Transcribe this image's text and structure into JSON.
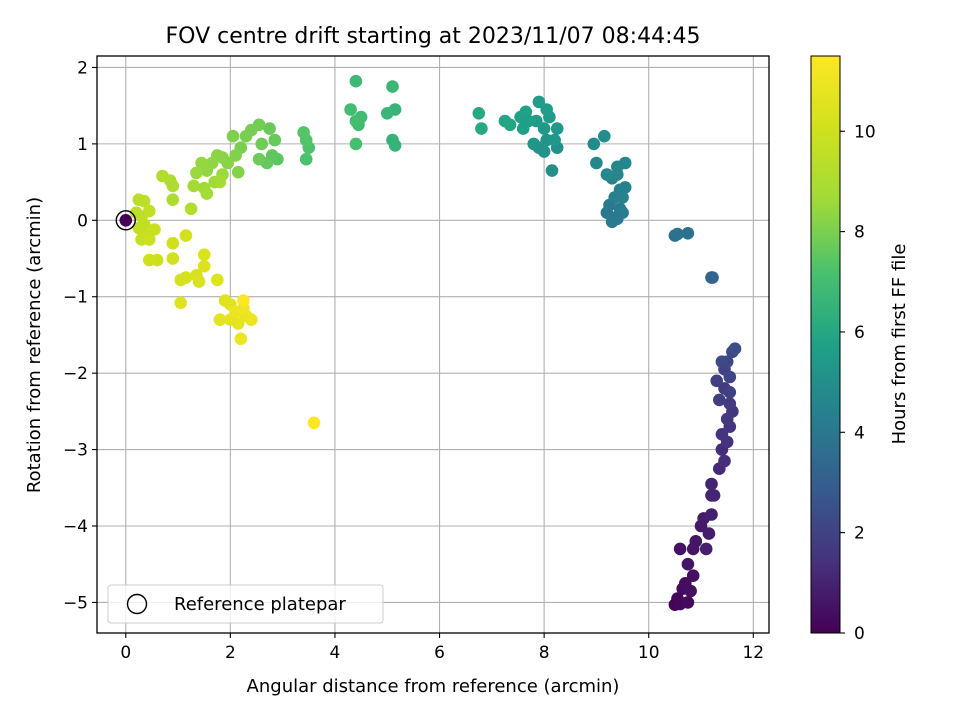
{
  "chart_data": {
    "type": "scatter",
    "title": "FOV centre drift starting at 2023/11/07 08:44:45",
    "xlabel": "Angular distance from reference (arcmin)",
    "ylabel": "Rotation from reference (arcmin)",
    "xlim": [
      -0.55,
      12.3
    ],
    "ylim": [
      -5.4,
      2.15
    ],
    "xticks": [
      0,
      2,
      4,
      6,
      8,
      10,
      12
    ],
    "yticks": [
      -5,
      -4,
      -3,
      -2,
      -1,
      0,
      1,
      2
    ],
    "grid": true,
    "legend": {
      "placement": "lower-left",
      "entries": [
        "Reference platepar"
      ]
    },
    "reference_point": {
      "x": 0,
      "y": 0
    },
    "colorbar": {
      "label": "Hours from first FF file",
      "range": [
        0,
        11.5
      ],
      "ticks": [
        0,
        2,
        4,
        6,
        8,
        10
      ],
      "colormap": "viridis"
    },
    "points": [
      [
        0,
        0,
        0
      ],
      [
        10.5,
        -5.03,
        0.1
      ],
      [
        10.55,
        -4.95,
        0.15
      ],
      [
        10.6,
        -5.02,
        0.2
      ],
      [
        10.75,
        -5.0,
        0.25
      ],
      [
        10.65,
        -4.82,
        0.3
      ],
      [
        10.7,
        -4.75,
        0.35
      ],
      [
        10.8,
        -4.85,
        0.4
      ],
      [
        10.85,
        -4.65,
        0.45
      ],
      [
        10.6,
        -4.3,
        0.5
      ],
      [
        10.75,
        -4.5,
        0.55
      ],
      [
        10.85,
        -4.3,
        0.6
      ],
      [
        10.9,
        -4.2,
        0.65
      ],
      [
        11.0,
        -4.0,
        0.7
      ],
      [
        11.05,
        -3.9,
        0.75
      ],
      [
        11.15,
        -4.1,
        0.8
      ],
      [
        11.1,
        -4.3,
        0.85
      ],
      [
        11.2,
        -3.85,
        0.9
      ],
      [
        11.2,
        -3.6,
        1.0
      ],
      [
        11.2,
        -3.45,
        1.05
      ],
      [
        11.25,
        -3.6,
        1.1
      ],
      [
        11.35,
        -3.25,
        1.2
      ],
      [
        11.4,
        -3.0,
        1.3
      ],
      [
        11.45,
        -3.15,
        1.35
      ],
      [
        11.5,
        -2.9,
        1.45
      ],
      [
        11.55,
        -2.7,
        1.5
      ],
      [
        11.6,
        -2.5,
        1.6
      ],
      [
        11.55,
        -2.4,
        1.7
      ],
      [
        11.45,
        -2.2,
        1.8
      ],
      [
        11.35,
        -2.35,
        1.85
      ],
      [
        11.3,
        -2.1,
        1.9
      ],
      [
        11.45,
        -1.95,
        2.0
      ],
      [
        11.55,
        -2.05,
        2.1
      ],
      [
        11.5,
        -1.85,
        2.2
      ],
      [
        11.6,
        -1.72,
        2.3
      ],
      [
        11.65,
        -1.68,
        2.35
      ],
      [
        11.4,
        -1.85,
        2.25
      ],
      [
        11.55,
        -2.25,
        1.95
      ],
      [
        11.5,
        -2.6,
        1.65
      ],
      [
        11.4,
        -2.8,
        1.55
      ],
      [
        11.2,
        -0.75,
        3.2
      ],
      [
        11.22,
        -0.75,
        3.3
      ],
      [
        10.75,
        -0.17,
        3.6
      ],
      [
        10.5,
        -0.2,
        3.7
      ],
      [
        10.55,
        -0.18,
        3.8
      ],
      [
        9.2,
        0.1,
        4.0
      ],
      [
        9.25,
        0.2,
        4.05
      ],
      [
        9.3,
        -0.02,
        4.1
      ],
      [
        9.4,
        0.05,
        4.15
      ],
      [
        9.45,
        0.15,
        4.2
      ],
      [
        9.5,
        0.1,
        4.25
      ],
      [
        9.35,
        0.3,
        4.3
      ],
      [
        9.45,
        0.4,
        4.35
      ],
      [
        9.5,
        0.3,
        4.4
      ],
      [
        9.55,
        0.43,
        4.45
      ],
      [
        9.3,
        0.55,
        4.5
      ],
      [
        9.4,
        0.6,
        4.55
      ],
      [
        9.55,
        0.75,
        4.6
      ],
      [
        9.4,
        0.7,
        4.65
      ],
      [
        9.2,
        0.6,
        4.7
      ],
      [
        9.0,
        0.75,
        4.75
      ],
      [
        8.95,
        1.0,
        4.8
      ],
      [
        9.15,
        1.1,
        4.85
      ],
      [
        9.4,
        0.02,
        4.1
      ],
      [
        8.15,
        0.65,
        5.0
      ],
      [
        8.25,
        0.95,
        5.05
      ],
      [
        8.0,
        0.9,
        5.1
      ],
      [
        7.9,
        0.95,
        5.15
      ],
      [
        8.05,
        1.05,
        5.2
      ],
      [
        7.8,
        1.0,
        5.25
      ],
      [
        8.2,
        1.05,
        5.3
      ],
      [
        8.25,
        1.2,
        5.35
      ],
      [
        8.0,
        1.2,
        5.4
      ],
      [
        8.1,
        1.35,
        5.45
      ],
      [
        7.85,
        1.3,
        5.5
      ],
      [
        7.9,
        1.55,
        5.55
      ],
      [
        8.05,
        1.45,
        5.6
      ],
      [
        7.7,
        1.3,
        5.65
      ],
      [
        7.6,
        1.2,
        5.7
      ],
      [
        7.55,
        1.35,
        5.75
      ],
      [
        7.65,
        1.42,
        5.8
      ],
      [
        7.35,
        1.25,
        5.9
      ],
      [
        7.25,
        1.3,
        5.95
      ],
      [
        6.8,
        1.2,
        6.05
      ],
      [
        6.75,
        1.4,
        6.1
      ],
      [
        5.1,
        1.05,
        6.5
      ],
      [
        5.15,
        0.98,
        6.55
      ],
      [
        5.15,
        1.45,
        6.6
      ],
      [
        5.0,
        1.4,
        6.65
      ],
      [
        5.1,
        1.75,
        6.7
      ],
      [
        4.4,
        1.82,
        6.8
      ],
      [
        4.45,
        1.25,
        6.85
      ],
      [
        4.5,
        1.35,
        6.9
      ],
      [
        4.3,
        1.45,
        6.95
      ],
      [
        4.4,
        1.3,
        7.0
      ],
      [
        4.4,
        1.0,
        7.05
      ],
      [
        3.45,
        0.8,
        7.2
      ],
      [
        3.5,
        0.95,
        7.25
      ],
      [
        3.45,
        1.05,
        7.3
      ],
      [
        3.4,
        1.15,
        7.35
      ],
      [
        2.9,
        0.8,
        7.5
      ],
      [
        2.8,
        0.85,
        7.55
      ],
      [
        2.7,
        0.75,
        7.6
      ],
      [
        2.85,
        1.05,
        7.65
      ],
      [
        2.75,
        1.2,
        7.7
      ],
      [
        2.55,
        0.8,
        7.75
      ],
      [
        2.6,
        1.0,
        7.8
      ],
      [
        2.55,
        1.25,
        7.85
      ],
      [
        2.4,
        1.18,
        7.9
      ],
      [
        2.3,
        1.1,
        7.95
      ],
      [
        2.2,
        0.95,
        8.0
      ],
      [
        2.05,
        1.1,
        8.05
      ],
      [
        2.1,
        0.85,
        8.1
      ],
      [
        2.15,
        0.63,
        8.15
      ],
      [
        1.95,
        0.75,
        8.2
      ],
      [
        1.85,
        0.82,
        8.25
      ],
      [
        1.75,
        0.85,
        8.3
      ],
      [
        1.65,
        0.75,
        8.35
      ],
      [
        1.55,
        0.65,
        8.4
      ],
      [
        1.45,
        0.75,
        8.45
      ],
      [
        1.35,
        0.62,
        8.5
      ],
      [
        1.85,
        0.6,
        8.55
      ],
      [
        1.7,
        0.5,
        8.6
      ],
      [
        1.5,
        0.42,
        8.65
      ],
      [
        1.3,
        0.45,
        8.7
      ],
      [
        1.55,
        0.35,
        8.75
      ],
      [
        1.8,
        0.5,
        8.8
      ],
      [
        0.9,
        0.27,
        9.0
      ],
      [
        0.9,
        0.45,
        9.05
      ],
      [
        0.85,
        0.52,
        9.1
      ],
      [
        0.7,
        0.58,
        9.15
      ],
      [
        1.25,
        0.15,
        9.2
      ],
      [
        0.25,
        0.27,
        9.4
      ],
      [
        0.35,
        0.25,
        9.45
      ],
      [
        0.3,
        0.05,
        9.5
      ],
      [
        0.2,
        0.1,
        9.55
      ],
      [
        0.45,
        0.12,
        9.6
      ],
      [
        0.35,
        -0.05,
        9.65
      ],
      [
        0.25,
        -0.1,
        9.7
      ],
      [
        0.4,
        -0.2,
        9.75
      ],
      [
        0.3,
        -0.25,
        9.8
      ],
      [
        0.55,
        -0.12,
        9.85
      ],
      [
        0.45,
        -0.25,
        9.9
      ],
      [
        0.6,
        -0.52,
        9.95
      ],
      [
        0.45,
        -0.52,
        10.0
      ],
      [
        0.9,
        -0.3,
        10.05
      ],
      [
        0.9,
        -0.5,
        10.1
      ],
      [
        1.15,
        -0.2,
        10.15
      ],
      [
        1.05,
        -0.78,
        10.2
      ],
      [
        1.15,
        -0.75,
        10.25
      ],
      [
        1.35,
        -0.72,
        10.3
      ],
      [
        1.4,
        -0.8,
        10.35
      ],
      [
        1.5,
        -0.45,
        10.4
      ],
      [
        1.5,
        -0.6,
        10.45
      ],
      [
        1.75,
        -0.78,
        10.5
      ],
      [
        1.05,
        -1.08,
        10.55
      ],
      [
        1.9,
        -1.05,
        10.6
      ],
      [
        2.0,
        -1.1,
        10.65
      ],
      [
        1.8,
        -1.3,
        10.7
      ],
      [
        2.0,
        -1.3,
        10.75
      ],
      [
        2.15,
        -1.35,
        10.8
      ],
      [
        2.3,
        -1.25,
        10.85
      ],
      [
        2.4,
        -1.3,
        10.9
      ],
      [
        2.2,
        -1.55,
        10.95
      ],
      [
        2.1,
        -1.2,
        11.0
      ],
      [
        2.25,
        -1.15,
        11.1
      ],
      [
        2.25,
        -1.05,
        11.5
      ],
      [
        3.6,
        -2.65,
        11.5
      ]
    ]
  }
}
